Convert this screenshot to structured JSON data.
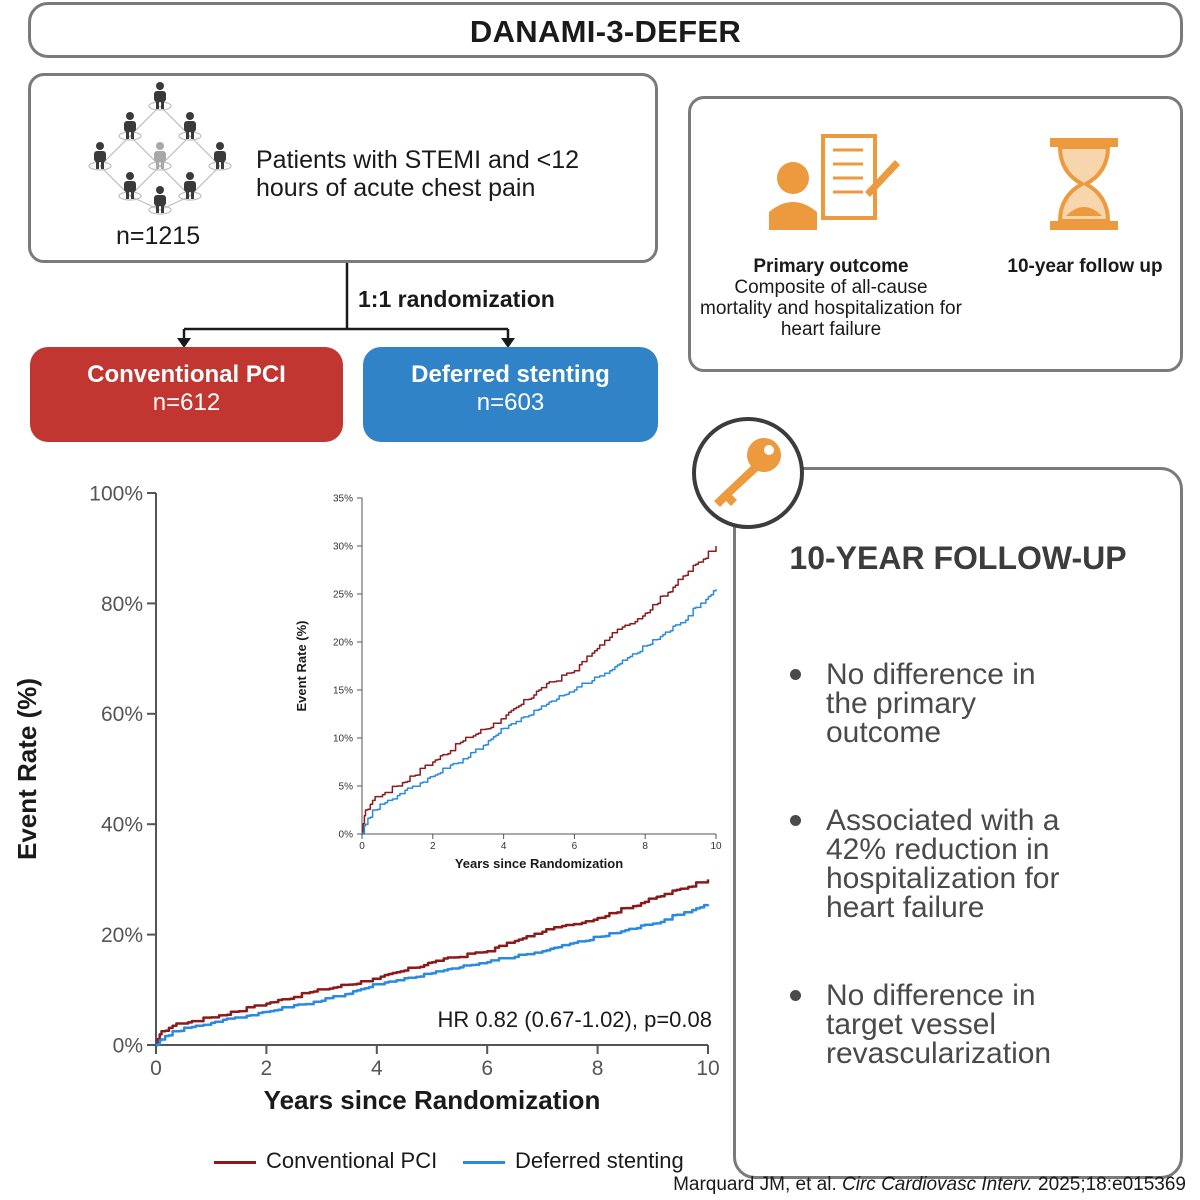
{
  "title": "DANAMI-3-DEFER",
  "population": {
    "description": "Patients with STEMI and <12 hours of acute chest pain",
    "n": "n=1215"
  },
  "randomization": "1:1 randomization",
  "arms": [
    {
      "name": "Conventional PCI",
      "n": "n=612",
      "color": "#c13630"
    },
    {
      "name": "Deferred stenting",
      "n": "n=603",
      "color": "#3183c8"
    }
  ],
  "outcome": {
    "heading": "Primary outcome",
    "description": "Composite of all-cause mortality and hospitalization for heart failure",
    "followup": "10-year follow up",
    "icon_color": "#ec9a3d"
  },
  "key_findings": {
    "title": "10-YEAR FOLLOW-UP",
    "bullets": [
      "No difference in the primary outcome",
      "Associated with a 42% reduction in hospitalization for heart failure",
      "No difference in target vessel revascularization"
    ]
  },
  "hr_text": "HR 0.82 (0.67-1.02), p=0.08",
  "citation": {
    "authors": "Marquard JM, et al. ",
    "journal": "Circ Cardiovasc Interv.",
    "ref": " 2025;18:e015369"
  },
  "chart_data": [
    {
      "type": "line",
      "xlabel": "Years since Randomization",
      "ylabel": "Event Rate (%)",
      "xlim": [
        0,
        10
      ],
      "ylim": [
        0,
        100
      ],
      "x_ticks": [
        "0",
        "2",
        "4",
        "6",
        "8",
        "10"
      ],
      "y_ticks": [
        "0%",
        "20%",
        "40%",
        "60%",
        "80%",
        "100%"
      ],
      "legend_position": "bottom",
      "series": [
        {
          "name": "Conventional PCI",
          "color": "#8b1a1a",
          "x": [
            0,
            0.1,
            0.3,
            1,
            2,
            3,
            4,
            5,
            6,
            7,
            8,
            9,
            10
          ],
          "y": [
            0,
            2.5,
            3.5,
            5,
            7.5,
            10,
            12,
            15,
            17,
            20.5,
            23,
            26.5,
            30
          ]
        },
        {
          "name": "Deferred stenting",
          "color": "#2a8ae0",
          "x": [
            0,
            0.1,
            0.3,
            1,
            2,
            3,
            4,
            5,
            6,
            7,
            8,
            9,
            10
          ],
          "y": [
            0,
            1,
            2.5,
            4,
            6,
            8,
            11,
            13,
            15,
            17,
            19.5,
            22,
            25.5
          ]
        }
      ]
    },
    {
      "type": "line",
      "xlabel": "Years since Randomization",
      "ylabel": "Event Rate (%)",
      "xlim": [
        0,
        10
      ],
      "ylim": [
        0,
        35
      ],
      "x_ticks": [
        "0",
        "2",
        "4",
        "6",
        "8",
        "10"
      ],
      "y_ticks": [
        "0%",
        "5%",
        "10%",
        "15%",
        "20%",
        "25%",
        "30%",
        "35%"
      ],
      "series": [
        {
          "name": "Conventional PCI",
          "color": "#8b1a1a",
          "x": [
            0,
            0.1,
            0.3,
            1,
            2,
            3,
            4,
            5,
            6,
            7,
            8,
            9,
            10
          ],
          "y": [
            0,
            2.5,
            3.5,
            5,
            7.5,
            10,
            12,
            15,
            17,
            20.5,
            23,
            26.5,
            30
          ]
        },
        {
          "name": "Deferred stenting",
          "color": "#2a8ae0",
          "x": [
            0,
            0.1,
            0.3,
            1,
            2,
            3,
            4,
            5,
            6,
            7,
            8,
            9,
            10
          ],
          "y": [
            0,
            1,
            2.5,
            4,
            6,
            8,
            11,
            13,
            15,
            17,
            19.5,
            22,
            25.5
          ]
        }
      ]
    }
  ]
}
